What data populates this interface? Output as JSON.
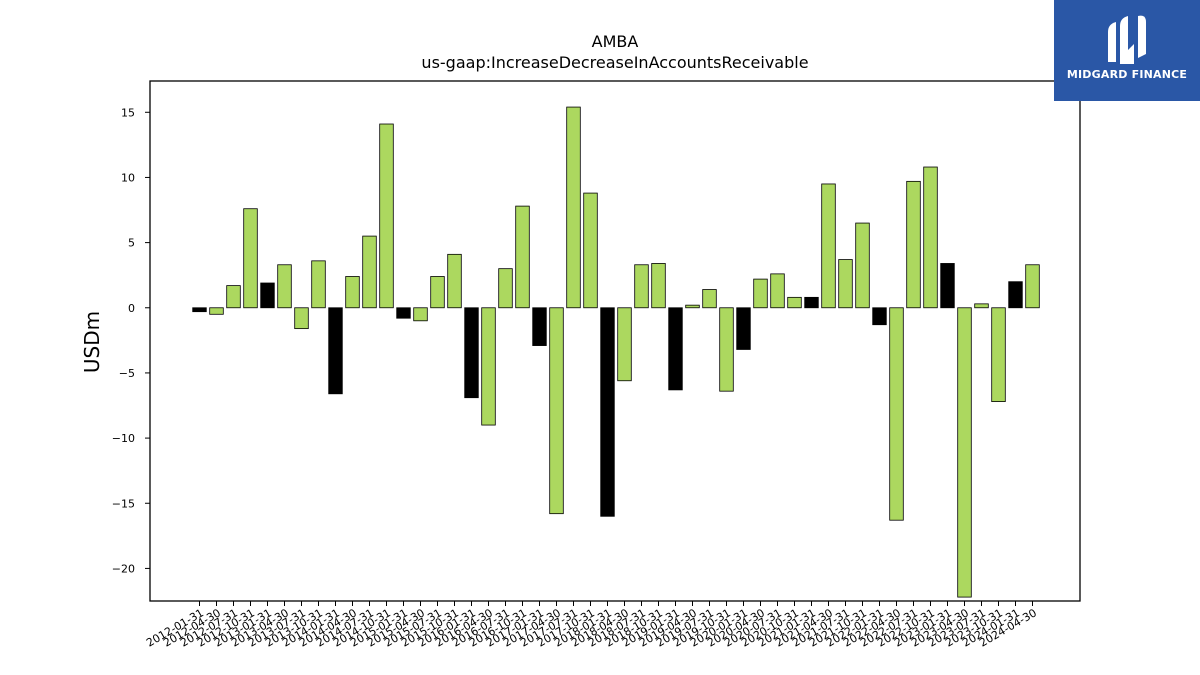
{
  "logo": {
    "text": "MIDGARD FINANCE",
    "icon": "midgard-finance-logo-icon",
    "background": "#2a57a6"
  },
  "colors": {
    "positive_yoy": "#acd85f",
    "other": "#000000",
    "edge": "#000000"
  },
  "chart_data": {
    "type": "bar",
    "title": "AMBA",
    "subtitle": "us-gaap:IncreaseDecreaseInAccountsReceivable",
    "xlabel": "",
    "ylabel": "USDm",
    "ylim": [
      -22.5,
      17.4
    ],
    "yticks": [
      15,
      10,
      5,
      0,
      -5,
      -10,
      -15,
      -20
    ],
    "grid": false,
    "categories": [
      "2012-01-31",
      "2012-04-30",
      "2012-07-31",
      "2012-10-31",
      "2013-01-31",
      "2013-04-30",
      "2013-07-31",
      "2013-10-31",
      "2014-01-31",
      "2014-04-30",
      "2014-07-31",
      "2014-10-31",
      "2015-01-31",
      "2015-04-30",
      "2015-07-31",
      "2015-10-31",
      "2016-01-31",
      "2016-04-30",
      "2016-07-31",
      "2016-10-31",
      "2017-01-31",
      "2017-04-30",
      "2017-07-31",
      "2017-10-31",
      "2018-01-31",
      "2018-04-30",
      "2018-07-31",
      "2018-10-31",
      "2019-01-31",
      "2019-04-30",
      "2019-07-31",
      "2019-10-31",
      "2020-01-31",
      "2020-04-30",
      "2020-07-31",
      "2020-10-31",
      "2021-01-31",
      "2021-04-30",
      "2021-07-31",
      "2021-10-31",
      "2022-01-31",
      "2022-04-30",
      "2022-07-31",
      "2022-10-31",
      "2023-01-31",
      "2023-04-30",
      "2023-07-31",
      "2023-10-31",
      "2024-01-31",
      "2024-04-30"
    ],
    "values": [
      -0.3,
      -0.5,
      1.7,
      7.6,
      1.9,
      3.3,
      -1.6,
      3.6,
      -6.6,
      2.4,
      5.5,
      14.1,
      -0.8,
      -1.0,
      2.4,
      4.1,
      -6.9,
      -9.0,
      3.0,
      7.8,
      -2.9,
      -15.8,
      15.4,
      8.8,
      -16.0,
      -5.6,
      3.3,
      3.4,
      -6.3,
      0.2,
      1.4,
      -6.4,
      -3.2,
      2.2,
      2.6,
      0.8,
      0.8,
      9.5,
      3.7,
      6.5,
      -1.3,
      -16.3,
      9.7,
      10.8,
      3.4,
      -22.2,
      0.3,
      -7.2,
      2.0,
      3.3
    ],
    "bar_color_keys": [
      "other",
      "positive_yoy",
      "positive_yoy",
      "positive_yoy",
      "other",
      "positive_yoy",
      "positive_yoy",
      "positive_yoy",
      "other",
      "positive_yoy",
      "positive_yoy",
      "positive_yoy",
      "other",
      "positive_yoy",
      "positive_yoy",
      "positive_yoy",
      "other",
      "positive_yoy",
      "positive_yoy",
      "positive_yoy",
      "other",
      "positive_yoy",
      "positive_yoy",
      "positive_yoy",
      "other",
      "positive_yoy",
      "positive_yoy",
      "positive_yoy",
      "other",
      "positive_yoy",
      "positive_yoy",
      "positive_yoy",
      "other",
      "positive_yoy",
      "positive_yoy",
      "positive_yoy",
      "other",
      "positive_yoy",
      "positive_yoy",
      "positive_yoy",
      "other",
      "positive_yoy",
      "positive_yoy",
      "positive_yoy",
      "other",
      "positive_yoy",
      "positive_yoy",
      "positive_yoy",
      "other",
      "positive_yoy"
    ]
  }
}
